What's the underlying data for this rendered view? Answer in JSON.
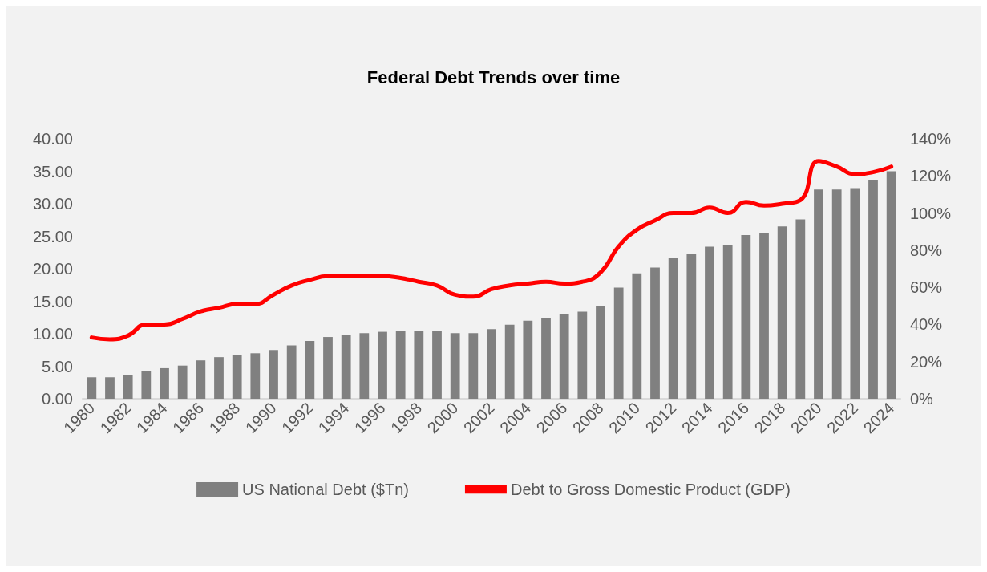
{
  "chart_data": {
    "type": "bar",
    "title": "Federal Debt Trends over time",
    "categories": [
      "1980",
      null,
      "1982",
      null,
      "1984",
      null,
      "1986",
      null,
      "1988",
      null,
      "1990",
      null,
      "1992",
      null,
      "1994",
      null,
      "1996",
      null,
      "1998",
      null,
      "2000",
      null,
      "2002",
      null,
      "2004",
      null,
      "2006",
      null,
      "2008",
      null,
      "2010",
      null,
      "2012",
      null,
      "2014",
      null,
      "2016",
      null,
      "2018",
      null,
      "2020",
      null,
      "2022",
      null,
      "2024"
    ],
    "series": [
      {
        "name": "US National Debt ($Tn)",
        "color": "#808080",
        "values": [
          3.3,
          3.3,
          3.6,
          4.2,
          4.7,
          5.1,
          5.9,
          6.4,
          6.7,
          7.0,
          7.5,
          8.2,
          8.9,
          9.5,
          9.8,
          10.1,
          10.3,
          10.4,
          10.4,
          10.4,
          10.1,
          10.1,
          10.7,
          11.4,
          12.0,
          12.4,
          13.1,
          13.4,
          14.2,
          17.1,
          19.3,
          20.2,
          21.6,
          22.3,
          23.4,
          23.7,
          25.2,
          25.5,
          26.5,
          27.6,
          32.2,
          32.2,
          32.4,
          33.7,
          35.0
        ]
      },
      {
        "name": "Debt to Gross Domestic Product (GDP)",
        "type": "line",
        "axis": "y2",
        "color": "#ff0000",
        "values": [
          33,
          32,
          34,
          40,
          40,
          43,
          47,
          49,
          51,
          51,
          56,
          61,
          64,
          66,
          66,
          66,
          66,
          65,
          63,
          61,
          56,
          55,
          59,
          61,
          62,
          63,
          62,
          63,
          68,
          82,
          91,
          96,
          100,
          100,
          103,
          100,
          106,
          104,
          105,
          107,
          128,
          125,
          121,
          122,
          125
        ]
      }
    ],
    "ylim": [
      0,
      40
    ],
    "yticks": [
      {
        "value": 0,
        "label": "0.00"
      },
      {
        "value": 5,
        "label": "5.00"
      },
      {
        "value": 10,
        "label": "10.00"
      },
      {
        "value": 15,
        "label": "15.00"
      },
      {
        "value": 20,
        "label": "20.00"
      },
      {
        "value": 25,
        "label": "25.00"
      },
      {
        "value": 30,
        "label": "30.00"
      },
      {
        "value": 35,
        "label": "35.00"
      },
      {
        "value": 40,
        "label": "40.00"
      }
    ],
    "y2lim": [
      0,
      140
    ],
    "y2ticks": [
      {
        "value": 0,
        "label": "0%"
      },
      {
        "value": 20,
        "label": "20%"
      },
      {
        "value": 40,
        "label": "40%"
      },
      {
        "value": 60,
        "label": "60%"
      },
      {
        "value": 80,
        "label": "80%"
      },
      {
        "value": 100,
        "label": "100%"
      },
      {
        "value": 120,
        "label": "120%"
      },
      {
        "value": 140,
        "label": "140%"
      }
    ],
    "grid": false,
    "legend": "bottom",
    "marker": "none",
    "line_style": "solid"
  }
}
